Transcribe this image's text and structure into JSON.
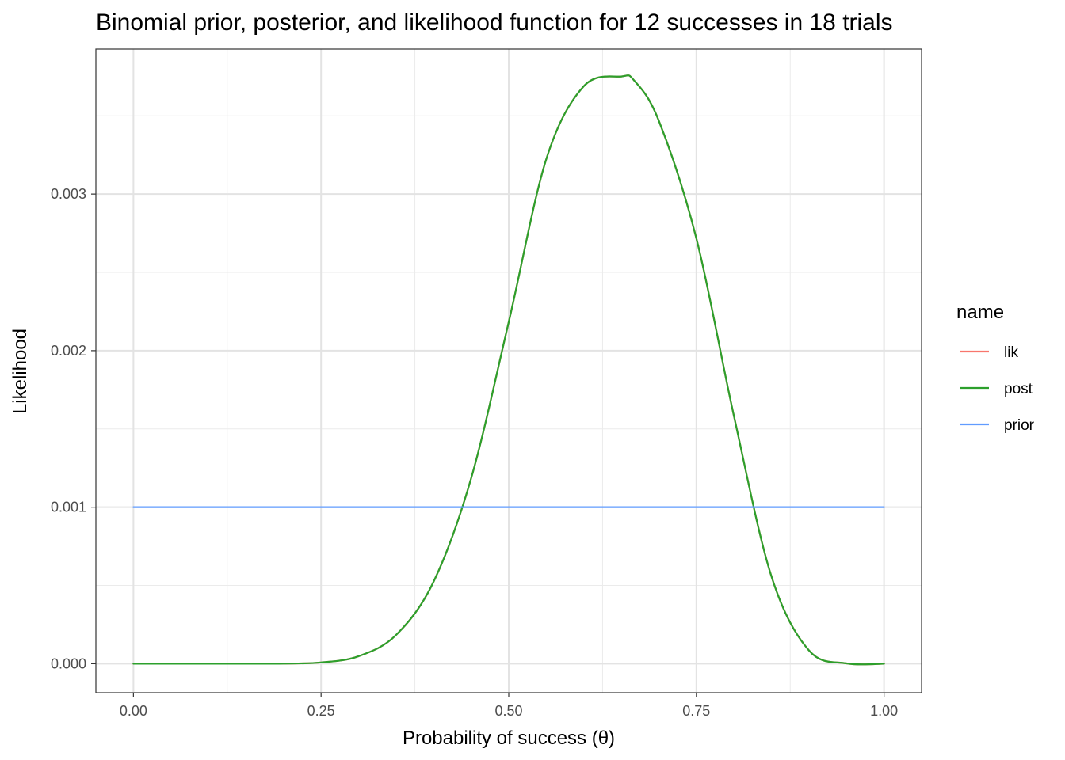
{
  "chart_data": {
    "type": "line",
    "title": "Binomial prior, posterior, and likelihood function for 12 successes in 18 trials",
    "xlabel": "Probability of success (θ)",
    "ylabel": "Likelihood",
    "xlim": [
      -0.05,
      1.05
    ],
    "ylim": [
      -0.000185,
      0.003926
    ],
    "x_ticks": [
      0.0,
      0.25,
      0.5,
      0.75,
      1.0
    ],
    "x_tick_labels": [
      "0.00",
      "0.25",
      "0.50",
      "0.75",
      "1.00"
    ],
    "y_ticks": [
      0.0,
      0.001,
      0.002,
      0.003
    ],
    "y_tick_labels": [
      "0.000",
      "0.001",
      "0.002",
      "0.003"
    ],
    "x_minor_ticks": [
      0.125,
      0.375,
      0.625,
      0.875
    ],
    "y_minor_ticks": [
      0.0005,
      0.0015,
      0.0025,
      0.0035
    ],
    "grid": true,
    "legend_title": "name",
    "legend_position": "right",
    "series": [
      {
        "name": "lik",
        "color": "#F8766D",
        "x": [
          0.0,
          0.05,
          0.1,
          0.15,
          0.2,
          0.25,
          0.3,
          0.35,
          0.4,
          0.45,
          0.5,
          0.55,
          0.6,
          0.65,
          0.667,
          0.7,
          0.75,
          0.8,
          0.85,
          0.9,
          0.95,
          1.0
        ],
        "y": [
          0.0,
          0.0,
          0.0,
          0.0,
          1e-06,
          8e-06,
          4.8e-05,
          0.000184,
          0.000525,
          0.001186,
          0.002183,
          0.003223,
          0.003689,
          0.003751,
          0.003726,
          0.003468,
          0.002716,
          0.001583,
          0.000558,
          8.5e-05,
          2e-06,
          0.0
        ]
      },
      {
        "name": "post",
        "color": "#2CA02C",
        "x": [
          0.0,
          0.05,
          0.1,
          0.15,
          0.2,
          0.25,
          0.3,
          0.35,
          0.4,
          0.45,
          0.5,
          0.55,
          0.6,
          0.65,
          0.667,
          0.7,
          0.75,
          0.8,
          0.85,
          0.9,
          0.95,
          1.0
        ],
        "y": [
          0.0,
          0.0,
          0.0,
          0.0,
          1e-06,
          8e-06,
          4.8e-05,
          0.000184,
          0.000525,
          0.001186,
          0.002183,
          0.003223,
          0.003689,
          0.003751,
          0.003726,
          0.003468,
          0.002716,
          0.001583,
          0.000558,
          8.5e-05,
          2e-06,
          0.0
        ]
      },
      {
        "name": "prior",
        "color": "#619CFF",
        "x": [
          0.0,
          1.0
        ],
        "y": [
          0.001,
          0.001
        ]
      }
    ]
  }
}
